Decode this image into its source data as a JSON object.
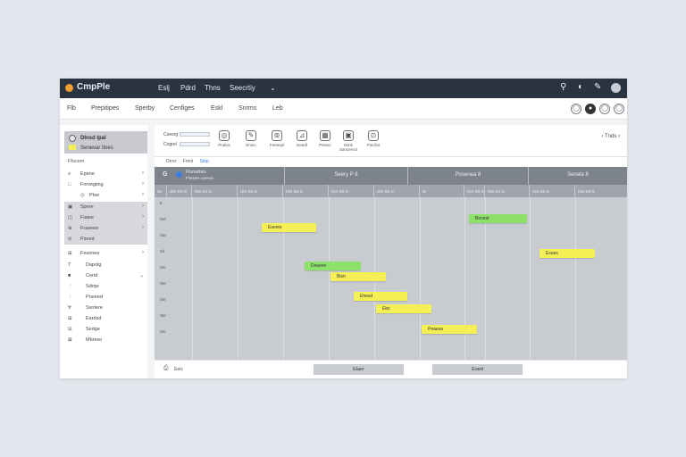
{
  "app": {
    "name": "CmpPle"
  },
  "titlebar": {
    "menus": [
      "Eslj",
      "Pdrd",
      "Thns",
      "Seecrtiy",
      "⌄"
    ],
    "icons": [
      "search-icon",
      "moon-icon",
      "wrench-icon",
      "avatar"
    ]
  },
  "menubar": {
    "items": [
      "Flb",
      "Prepitipes",
      "Sperby",
      "Cenfiges",
      "Eskl",
      "Snrms",
      "Leb"
    ],
    "buttons": [
      "◯",
      "●",
      "◯",
      "◯"
    ]
  },
  "sidebar": {
    "header": {
      "title": "Dlnsd Ipal",
      "subtitle": "Senevar Iloes"
    },
    "section1": "Ffocem",
    "group1": [
      {
        "icon": "≡",
        "label": "Epene"
      },
      {
        "icon": "□",
        "label": "Fnrvegiing"
      },
      {
        "icon": "◎",
        "label": "Ptse"
      }
    ],
    "group2": [
      {
        "icon": "▣",
        "label": "Spere"
      },
      {
        "icon": "◫",
        "label": "Fiaiee"
      },
      {
        "icon": "⊕",
        "label": "Fraseee"
      },
      {
        "icon": "⊘",
        "label": "Pzeed"
      }
    ],
    "section2": "Fesonee",
    "group3": [
      {
        "icon": "T",
        "label": "Dapolg"
      },
      {
        "icon": "■",
        "label": "Cerid"
      },
      {
        "icon": "⋮",
        "label": "Sdrqe"
      },
      {
        "icon": "⋮",
        "label": "Pneeed"
      },
      {
        "icon": "∀",
        "label": "Ssntere"
      },
      {
        "icon": "⊞",
        "label": "Eardsd"
      },
      {
        "icon": "⊟",
        "label": "Sedge"
      },
      {
        "icon": "⊠",
        "label": "Mbreso"
      }
    ]
  },
  "toolbar": {
    "fields": [
      {
        "label": "Coesrg",
        "value": ""
      },
      {
        "label": "Cogrel",
        "value": ""
      }
    ],
    "tools": [
      {
        "icon": "◎",
        "label": "Pndsis"
      },
      {
        "icon": "✎",
        "label": "Ensrc"
      },
      {
        "icon": "⊚",
        "label": "Feeespl"
      },
      {
        "icon": "⊿",
        "label": "Eeedl"
      },
      {
        "icon": "▦",
        "label": "Pistecr"
      },
      {
        "icon": "▣",
        "label": "Itenk Sancernct"
      },
      {
        "icon": "⊙",
        "label": "Ftecllot"
      }
    ],
    "views": [
      "Drrer",
      "Frnol",
      "Stop"
    ],
    "pager": "Tnds"
  },
  "grid": {
    "corner": {
      "icon": "G",
      "title": "Ftonwlnes",
      "subtitle": "Flinsiee Lweosr"
    },
    "days": [
      "Seery P 8",
      "Posenea 8",
      "Senela 8"
    ],
    "subheaders": [
      "Sx",
      "ISS DS S",
      "ISS SS S",
      "ISS SS S",
      "ISS SS S",
      "ISS SS S",
      "ISS SS S",
      "IS",
      "ISS SS S",
      "ISS SS S",
      "ISS SS S"
    ],
    "times": [
      "8",
      "Sel",
      "Ste",
      "Sil",
      "Sei",
      "Ste",
      "Sei",
      "Ste",
      "Sei"
    ],
    "events": [
      {
        "label": "Eseres",
        "color": "yellow"
      },
      {
        "label": "Bonest",
        "color": "green"
      },
      {
        "label": "Esaes",
        "color": "yellow"
      },
      {
        "label": "Dnseee",
        "color": "green"
      },
      {
        "label": "Bisn",
        "color": "yellow"
      },
      {
        "label": "Ehesd",
        "color": "yellow"
      },
      {
        "label": "Ebs",
        "color": "yellow"
      },
      {
        "label": "Peaesa",
        "color": "yellow"
      }
    ]
  },
  "footer": {
    "icon": "⎙",
    "label": "Eeis",
    "button1": "Elaer",
    "button2": "Eoed"
  }
}
